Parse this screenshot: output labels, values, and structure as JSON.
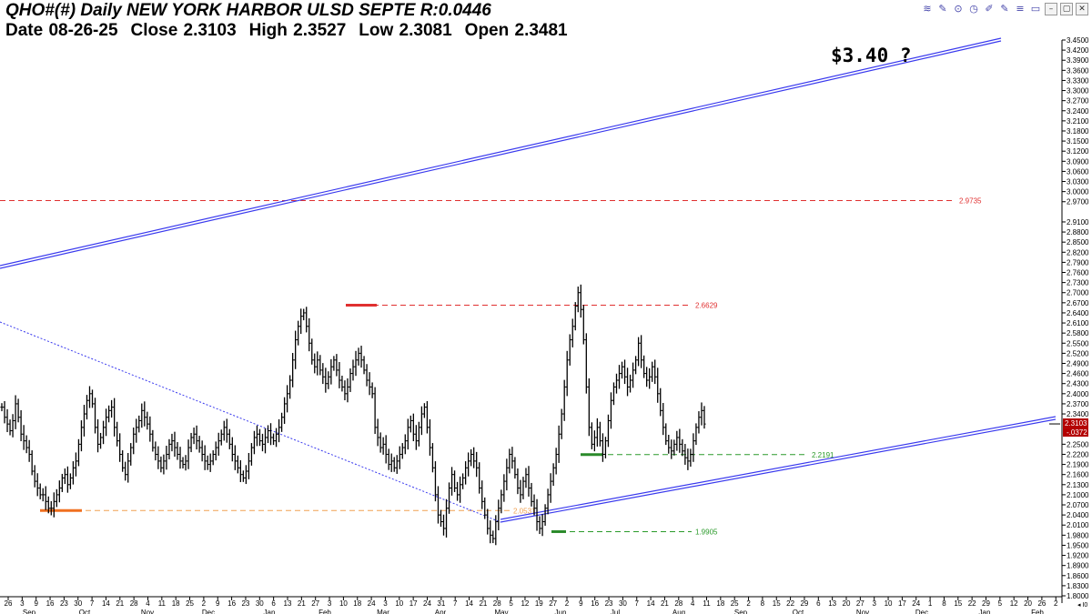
{
  "header": {
    "title": "QHO#(#) Daily NEW YORK HARBOR ULSD SEPTE R:0.0446",
    "date": "Date 08-26-25",
    "close": "Close 2.3103",
    "high": "High 2.3527",
    "low": "Low 2.3081",
    "open": "Open 2.3481"
  },
  "toolbar": {
    "icons": [
      "waves-icon",
      "pencil-icon",
      "target-icon",
      "clock-icon",
      "brush-icon",
      "pencil-check-icon",
      "sliders-icon",
      "battery-icon",
      "minimize-icon",
      "restore-icon",
      "close-icon"
    ],
    "glyphs": [
      "≋",
      "✎",
      "⊙",
      "◷",
      "✐",
      "✎",
      "≡",
      "▭",
      "–",
      "▢",
      "✕"
    ]
  },
  "annotation": "$3.40 ?",
  "corner_label": "◂ I0",
  "chart_data": {
    "type": "ohlc",
    "ylim": [
      1.8,
      3.45
    ],
    "y_ticks": [
      "3.4500",
      "3.4200",
      "3.3900",
      "3.3600",
      "3.3300",
      "3.3000",
      "3.2700",
      "3.2400",
      "3.2100",
      "3.1800",
      "3.1500",
      "3.1200",
      "3.0900",
      "3.0600",
      "3.0300",
      "3.0000",
      "2.9700",
      "2.9100",
      "2.8800",
      "2.8500",
      "2.8200",
      "2.7900",
      "2.7600",
      "2.7300",
      "2.7000",
      "2.6700",
      "2.6400",
      "2.6100",
      "2.5800",
      "2.5500",
      "2.5200",
      "2.4900",
      "2.4600",
      "2.4300",
      "2.4000",
      "2.3700",
      "2.3400",
      "2.2500",
      "2.2200",
      "2.1900",
      "2.1600",
      "2.1300",
      "2.1000",
      "2.0700",
      "2.0400",
      "2.0100",
      "1.9800",
      "1.9500",
      "1.9200",
      "1.8900",
      "1.8600",
      "1.8300",
      "1.8000"
    ],
    "x_day_ticks": [
      "26",
      "3",
      "9",
      "16",
      "23",
      "30",
      "7",
      "14",
      "21",
      "28",
      "4",
      "11",
      "18",
      "25",
      "2",
      "9",
      "16",
      "23",
      "30",
      "6",
      "13",
      "21",
      "27",
      "3",
      "10",
      "18",
      "24",
      "3",
      "10",
      "17",
      "24",
      "31",
      "7",
      "14",
      "21",
      "28",
      "5",
      "12",
      "19",
      "27",
      "2",
      "9",
      "16",
      "23",
      "30",
      "7",
      "14",
      "21",
      "28",
      "4",
      "11",
      "18",
      "25",
      "2",
      "8",
      "15",
      "22",
      "29",
      "6",
      "13",
      "20",
      "27",
      "3",
      "10",
      "17",
      "24",
      "1",
      "8",
      "15",
      "22",
      "29",
      "5",
      "12",
      "20",
      "26",
      "2",
      "9"
    ],
    "x_month_labels": [
      "Sep",
      "Oct",
      "Nov",
      "Dec",
      "Jan",
      "Feb",
      "Mar",
      "Apr",
      "May",
      "Jun",
      "Jul",
      "Aug",
      "Sep",
      "Oct",
      "Nov",
      "Dec",
      "Jan",
      "Feb"
    ],
    "last_price": {
      "value": 2.3103,
      "label": "2.3103",
      "change_label": "-.0372"
    },
    "levels": [
      {
        "value": 2.9735,
        "label": "2.9735",
        "color": "#e03030"
      },
      {
        "value": 2.6629,
        "label": "2.6629",
        "color": "#e03030"
      },
      {
        "value": 2.2191,
        "label": "2.2191",
        "color": "#2a9a2a"
      },
      {
        "value": 2.0531,
        "label": "2.0531",
        "color": "#f0a050"
      },
      {
        "value": 1.9905,
        "label": "1.9905",
        "color": "#2a9a2a"
      }
    ],
    "trendlines": [
      {
        "name": "upper-channel",
        "color": "#3a3aee",
        "from": {
          "bar": -5,
          "price": 2.78
        },
        "to": {
          "bar": 270,
          "price": 3.45
        }
      },
      {
        "name": "lower-channel",
        "color": "#3a3aee",
        "from": {
          "bar": 136,
          "price": 1.94
        },
        "to": {
          "bar": 276,
          "price": 2.33
        }
      },
      {
        "name": "falling-dotted",
        "color": "#3a3aee",
        "from": {
          "bar": -5,
          "price": 2.62
        },
        "to": {
          "bar": 136,
          "price": 1.94
        }
      }
    ],
    "bars_closes": [
      2.36,
      2.33,
      2.31,
      2.29,
      2.32,
      2.37,
      2.33,
      2.28,
      2.26,
      2.24,
      2.22,
      2.17,
      2.14,
      2.12,
      2.1,
      2.1,
      2.08,
      2.06,
      2.06,
      2.08,
      2.1,
      2.12,
      2.15,
      2.16,
      2.13,
      2.15,
      2.18,
      2.2,
      2.25,
      2.3,
      2.34,
      2.38,
      2.4,
      2.37,
      2.3,
      2.25,
      2.27,
      2.3,
      2.33,
      2.35,
      2.36,
      2.3,
      2.26,
      2.22,
      2.18,
      2.16,
      2.2,
      2.24,
      2.28,
      2.3,
      2.32,
      2.35,
      2.33,
      2.31,
      2.28,
      2.24,
      2.22,
      2.2,
      2.18,
      2.2,
      2.22,
      2.25,
      2.26,
      2.24,
      2.22,
      2.2,
      2.19,
      2.2,
      2.24,
      2.27,
      2.28,
      2.26,
      2.24,
      2.22,
      2.2,
      2.19,
      2.2,
      2.22,
      2.24,
      2.26,
      2.28,
      2.3,
      2.28,
      2.25,
      2.22,
      2.2,
      2.18,
      2.16,
      2.15,
      2.17,
      2.2,
      2.24,
      2.27,
      2.28,
      2.26,
      2.25,
      2.27,
      2.29,
      2.27,
      2.26,
      2.28,
      2.3,
      2.33,
      2.37,
      2.4,
      2.44,
      2.5,
      2.56,
      2.6,
      2.63,
      2.64,
      2.6,
      2.55,
      2.5,
      2.48,
      2.5,
      2.47,
      2.45,
      2.43,
      2.45,
      2.48,
      2.5,
      2.47,
      2.44,
      2.42,
      2.4,
      2.42,
      2.46,
      2.48,
      2.5,
      2.52,
      2.5,
      2.47,
      2.44,
      2.42,
      2.4,
      2.3,
      2.27,
      2.24,
      2.25,
      2.22,
      2.19,
      2.2,
      2.18,
      2.2,
      2.22,
      2.24,
      2.26,
      2.3,
      2.32,
      2.28,
      2.26,
      2.3,
      2.34,
      2.36,
      2.3,
      2.24,
      2.18,
      2.1,
      2.04,
      2.02,
      2.0,
      2.06,
      2.12,
      2.16,
      2.12,
      2.1,
      2.13,
      2.15,
      2.18,
      2.2,
      2.22,
      2.2,
      2.18,
      2.12,
      2.08,
      2.04,
      2.0,
      1.98,
      1.97,
      2.02,
      2.06,
      2.1,
      2.14,
      2.18,
      2.22,
      2.2,
      2.16,
      2.12,
      2.1,
      2.14,
      2.16,
      2.12,
      2.08,
      2.06,
      2.02,
      2.0,
      2.02,
      2.06,
      2.1,
      2.14,
      2.18,
      2.22,
      2.28,
      2.34,
      2.42,
      2.5,
      2.56,
      2.6,
      2.66,
      2.7,
      2.65,
      2.56,
      2.42,
      2.3,
      2.25,
      2.27,
      2.3,
      2.26,
      2.22,
      2.26,
      2.32,
      2.38,
      2.42,
      2.44,
      2.46,
      2.48,
      2.45,
      2.42,
      2.44,
      2.47,
      2.5,
      2.55,
      2.5,
      2.46,
      2.44,
      2.45,
      2.48,
      2.45,
      2.4,
      2.35,
      2.3,
      2.26,
      2.24,
      2.23,
      2.25,
      2.27,
      2.25,
      2.23,
      2.21,
      2.2,
      2.22,
      2.26,
      2.3,
      2.33,
      2.35,
      2.31
    ],
    "drawn_bars": 250
  }
}
